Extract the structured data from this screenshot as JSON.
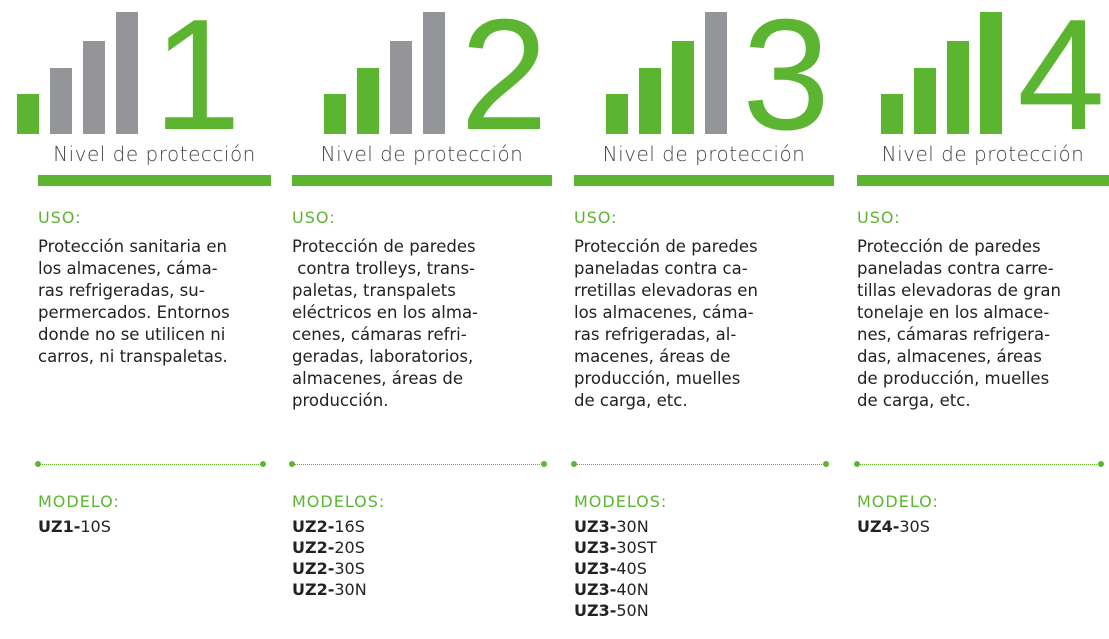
{
  "label": "Nivel de protección",
  "columns": [
    {
      "level": "1",
      "uso_heading": "USO:",
      "uso_lines": [
        "Protección sanitaria en",
        "los almacenes, cáma-",
        "ras refrigeradas, su-",
        "permercados. Entornos",
        "donde no se utilicen ni",
        "carros, ni transpaletas."
      ],
      "modelo_heading": "MODELO:",
      "models": [
        {
          "code": "UZ1-",
          "variant": "10S"
        }
      ]
    },
    {
      "level": "2",
      "uso_heading": "USO:",
      "uso_lines": [
        "Protección de paredes",
        " contra trolleys, trans-",
        "paletas, transpalets",
        "eléctricos en los alma-",
        "cenes, cámaras refri-",
        "geradas, laboratorios,",
        "almacenes, áreas de",
        "producción."
      ],
      "modelo_heading": "MODELOS:",
      "models": [
        {
          "code": "UZ2-",
          "variant": "16S"
        },
        {
          "code": "UZ2-",
          "variant": "20S"
        },
        {
          "code": "UZ2-",
          "variant": "30S"
        },
        {
          "code": "UZ2-",
          "variant": "30N"
        }
      ]
    },
    {
      "level": "3",
      "uso_heading": "USO:",
      "uso_lines": [
        "Protección de paredes",
        "paneladas contra ca-",
        "rretillas elevadoras en",
        "los almacenes, cáma-",
        "ras refrigeradas, al-",
        "macenes, áreas de",
        "producción, muelles",
        "de carga, etc."
      ],
      "modelo_heading": "MODELOS:",
      "models": [
        {
          "code": "UZ3-",
          "variant": "30N"
        },
        {
          "code": "UZ3-",
          "variant": "30ST"
        },
        {
          "code": "UZ3-",
          "variant": "40S"
        },
        {
          "code": "UZ3-",
          "variant": "40N"
        },
        {
          "code": "UZ3-",
          "variant": "50N"
        }
      ]
    },
    {
      "level": "4",
      "uso_heading": "USO:",
      "uso_lines": [
        "Protección de paredes",
        "paneladas contra carre-",
        "tillas elevadoras de gran",
        "tonelaje en los almace-",
        "nes, cámaras refrigera-",
        "das, almacenes, áreas",
        "de producción, muelles",
        "de carga, etc."
      ],
      "modelo_heading": "MODELO:",
      "models": [
        {
          "code": "UZ4-",
          "variant": "30S"
        }
      ]
    }
  ]
}
